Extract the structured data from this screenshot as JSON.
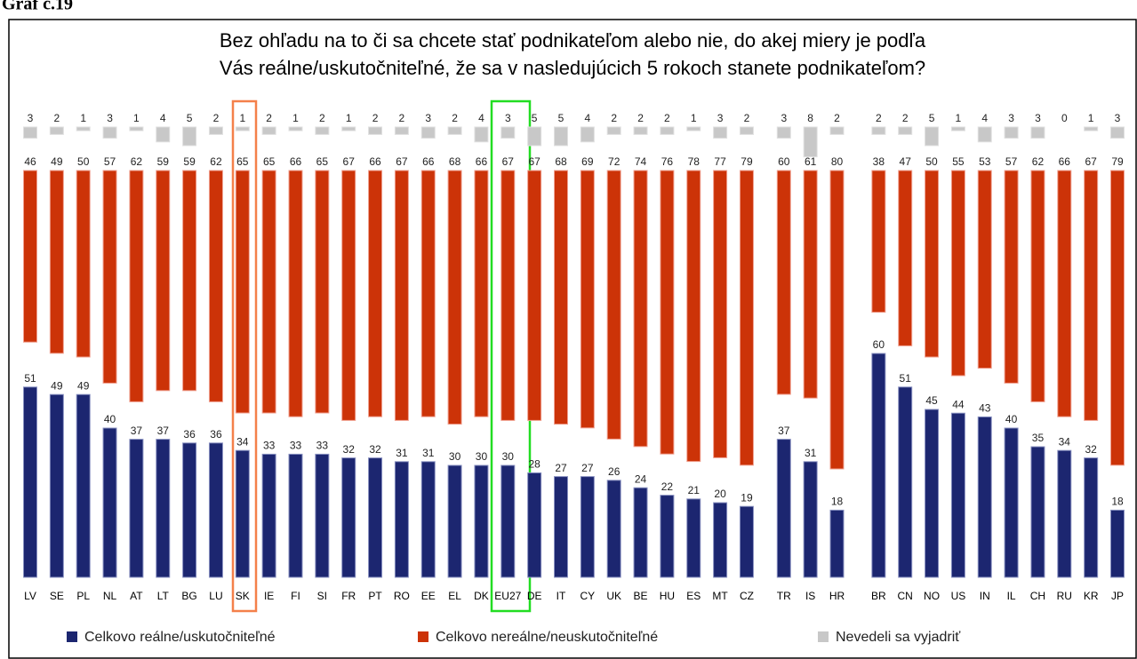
{
  "chart_data": {
    "type": "bar",
    "heading": "Graf č.19",
    "title": "Bez ohľadu na to či sa chcete stať podnikateľom alebo nie, do akej miery je podľa",
    "title_line2": "Vás reálne/uskutočniteľné, že sa v nasledujúcich 5 rokoch stanete podnikateľom?",
    "categories": [
      "LV",
      "SE",
      "PL",
      "NL",
      "AT",
      "LT",
      "BG",
      "LU",
      "SK",
      "IE",
      "FI",
      "SI",
      "FR",
      "PT",
      "RO",
      "EE",
      "EL",
      "DK",
      "EU27",
      "DE",
      "IT",
      "CY",
      "UK",
      "BE",
      "HU",
      "ES",
      "MT",
      "CZ",
      "TR",
      "IS",
      "HR",
      "BR",
      "CN",
      "NO",
      "US",
      "IN",
      "IL",
      "CH",
      "RU",
      "KR",
      "JP"
    ],
    "series": [
      {
        "name": "Celkovo reálne/uskutočniteľné",
        "color": "#1c2670",
        "values": [
          51,
          49,
          49,
          40,
          37,
          37,
          36,
          36,
          34,
          33,
          33,
          33,
          32,
          32,
          31,
          31,
          30,
          30,
          30,
          28,
          27,
          27,
          26,
          24,
          22,
          21,
          20,
          19,
          37,
          31,
          18,
          60,
          51,
          45,
          44,
          43,
          40,
          35,
          34,
          32,
          18
        ]
      },
      {
        "name": "Celkovo nereálne/neuskutočniteľné",
        "color": "#cc3308",
        "values": [
          46,
          49,
          50,
          57,
          62,
          59,
          59,
          62,
          65,
          65,
          66,
          65,
          67,
          66,
          67,
          66,
          68,
          66,
          67,
          67,
          68,
          69,
          72,
          74,
          76,
          78,
          77,
          79,
          60,
          61,
          80,
          38,
          47,
          50,
          55,
          53,
          57,
          62,
          66,
          67,
          79
        ]
      },
      {
        "name": "Nevedeli sa vyjadriť",
        "color": "#c8c8c8",
        "values": [
          3,
          2,
          1,
          3,
          1,
          4,
          5,
          2,
          1,
          2,
          1,
          2,
          1,
          2,
          2,
          3,
          2,
          4,
          3,
          5,
          5,
          4,
          2,
          2,
          2,
          1,
          3,
          2,
          3,
          8,
          2,
          2,
          2,
          5,
          1,
          4,
          3,
          3,
          0,
          1,
          3
        ]
      }
    ]
  }
}
